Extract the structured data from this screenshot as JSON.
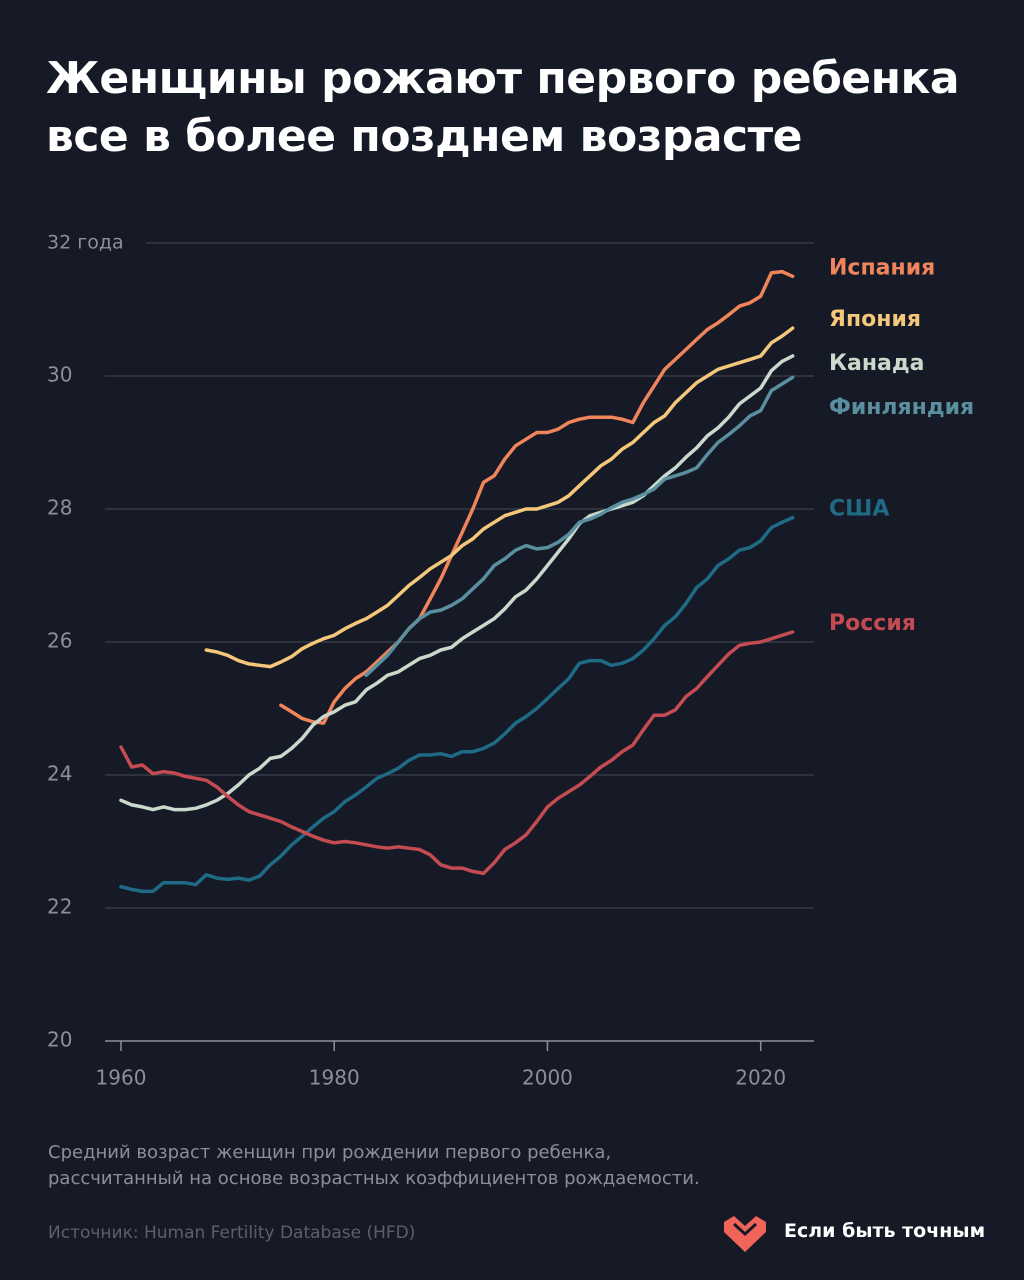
{
  "chart_data": {
    "type": "line",
    "title": "Женщины рожают первого ребенка все в более позднем возрасте",
    "note": "Средний возраст женщин при рождении первого ребенка, рассчитанный на основе возрастных коэффициентов рождаемости.",
    "source": "Источник: Human Fertility Database (HFD)",
    "brand": "Если быть точным",
    "xlim": [
      1958.5,
      2025
    ],
    "xticks": [
      1960,
      1980,
      2000,
      2020
    ],
    "ylim": [
      20,
      32
    ],
    "yticks": [
      20,
      22,
      24,
      26,
      28,
      30,
      {
        "value": 32,
        "label": "32 года"
      }
    ],
    "grid": true,
    "x": [
      1960,
      1961,
      1962,
      1963,
      1964,
      1965,
      1966,
      1967,
      1968,
      1969,
      1970,
      1971,
      1972,
      1973,
      1974,
      1975,
      1976,
      1977,
      1978,
      1979,
      1980,
      1981,
      1982,
      1983,
      1984,
      1985,
      1986,
      1987,
      1988,
      1989,
      1990,
      1991,
      1992,
      1993,
      1994,
      1995,
      1996,
      1997,
      1998,
      1999,
      2000,
      2001,
      2002,
      2003,
      2004,
      2005,
      2006,
      2007,
      2008,
      2009,
      2010,
      2011,
      2012,
      2013,
      2014,
      2015,
      2016,
      2017,
      2018,
      2019,
      2020,
      2021,
      2022,
      2023
    ],
    "series": [
      {
        "name": "Испания",
        "color": "#f0845a",
        "values": [
          null,
          null,
          null,
          null,
          null,
          null,
          null,
          null,
          null,
          null,
          null,
          null,
          null,
          null,
          null,
          25.05,
          24.95,
          24.85,
          24.8,
          24.78,
          25.1,
          25.3,
          25.45,
          25.55,
          25.7,
          25.85,
          26.0,
          26.2,
          26.35,
          26.65,
          26.95,
          27.3,
          27.65,
          28.0,
          28.4,
          28.5,
          28.75,
          28.95,
          29.05,
          29.15,
          29.15,
          29.2,
          29.3,
          29.35,
          29.38,
          29.38,
          29.38,
          29.35,
          29.3,
          29.6,
          29.85,
          30.1,
          30.25,
          30.4,
          30.55,
          30.7,
          30.8,
          30.92,
          31.05,
          31.1,
          31.2,
          31.55,
          31.57,
          31.5
        ]
      },
      {
        "name": "Япония",
        "color": "#f5c77a",
        "values": [
          null,
          null,
          null,
          null,
          null,
          null,
          null,
          null,
          25.88,
          25.85,
          25.8,
          25.72,
          25.67,
          25.65,
          25.63,
          25.7,
          25.78,
          25.9,
          25.98,
          26.05,
          26.1,
          26.2,
          26.28,
          26.35,
          26.45,
          26.55,
          26.7,
          26.85,
          26.97,
          27.1,
          27.2,
          27.3,
          27.45,
          27.55,
          27.7,
          27.8,
          27.9,
          27.95,
          28.0,
          28.0,
          28.05,
          28.1,
          28.2,
          28.35,
          28.5,
          28.65,
          28.75,
          28.9,
          29.0,
          29.15,
          29.3,
          29.4,
          29.6,
          29.75,
          29.9,
          30.0,
          30.1,
          30.15,
          30.2,
          30.25,
          30.3,
          30.5,
          30.6,
          30.72
        ]
      },
      {
        "name": "Канада",
        "color": "#c9d9cc",
        "values": [
          23.62,
          23.55,
          23.52,
          23.48,
          23.52,
          23.48,
          23.48,
          23.5,
          23.55,
          23.62,
          23.72,
          23.85,
          24.0,
          24.1,
          24.25,
          24.28,
          24.4,
          24.55,
          24.75,
          24.88,
          24.95,
          25.05,
          25.1,
          25.28,
          25.38,
          25.5,
          25.55,
          25.65,
          25.75,
          25.8,
          25.88,
          25.92,
          26.05,
          26.15,
          26.25,
          26.35,
          26.5,
          26.68,
          26.78,
          26.95,
          27.15,
          27.35,
          27.55,
          27.78,
          27.9,
          27.95,
          28.0,
          28.05,
          28.1,
          28.2,
          28.35,
          28.5,
          28.62,
          28.78,
          28.92,
          29.1,
          29.22,
          29.38,
          29.58,
          29.7,
          29.82,
          30.08,
          30.22,
          30.3
        ]
      },
      {
        "name": "Финляндия",
        "color": "#5a8fa0",
        "values": [
          null,
          null,
          null,
          null,
          null,
          null,
          null,
          null,
          null,
          null,
          null,
          null,
          null,
          null,
          null,
          null,
          null,
          null,
          null,
          null,
          null,
          null,
          null,
          25.5,
          25.65,
          25.8,
          26.0,
          26.2,
          26.35,
          26.45,
          26.48,
          26.55,
          26.65,
          26.8,
          26.95,
          27.15,
          27.25,
          27.38,
          27.45,
          27.4,
          27.42,
          27.5,
          27.62,
          27.8,
          27.85,
          27.92,
          28.02,
          28.1,
          28.15,
          28.22,
          28.3,
          28.45,
          28.5,
          28.55,
          28.62,
          28.82,
          29.0,
          29.12,
          29.25,
          29.4,
          29.48,
          29.78,
          29.88,
          29.98
        ]
      },
      {
        "name": "США",
        "color": "#1f6a85",
        "values": [
          22.32,
          22.28,
          22.25,
          22.25,
          22.38,
          22.38,
          22.38,
          22.35,
          22.5,
          22.45,
          22.43,
          22.45,
          22.42,
          22.48,
          22.65,
          22.78,
          22.95,
          23.08,
          23.22,
          23.35,
          23.45,
          23.6,
          23.7,
          23.82,
          23.95,
          24.02,
          24.1,
          24.22,
          24.3,
          24.3,
          24.32,
          24.28,
          24.35,
          24.35,
          24.4,
          24.48,
          24.62,
          24.78,
          24.88,
          25.0,
          25.15,
          25.3,
          25.45,
          25.68,
          25.72,
          25.72,
          25.65,
          25.68,
          25.75,
          25.88,
          26.05,
          26.25,
          26.38,
          26.58,
          26.82,
          26.95,
          27.15,
          27.25,
          27.38,
          27.42,
          27.52,
          27.72,
          27.8,
          27.87
        ]
      },
      {
        "name": "Россия",
        "color": "#c44b52",
        "values": [
          24.42,
          24.12,
          24.15,
          24.02,
          24.05,
          24.03,
          23.98,
          23.95,
          23.92,
          23.82,
          23.68,
          23.55,
          23.45,
          23.4,
          23.35,
          23.3,
          23.22,
          23.15,
          23.08,
          23.02,
          22.98,
          23.0,
          22.98,
          22.95,
          22.92,
          22.9,
          22.92,
          22.9,
          22.88,
          22.8,
          22.65,
          22.6,
          22.6,
          22.55,
          22.52,
          22.68,
          22.88,
          22.98,
          23.1,
          23.3,
          23.52,
          23.65,
          23.75,
          23.85,
          23.98,
          24.12,
          24.22,
          24.35,
          24.45,
          24.68,
          24.9,
          24.9,
          24.98,
          25.18,
          25.3,
          25.48,
          25.65,
          25.82,
          25.95,
          25.98,
          26.0,
          26.05,
          26.1,
          26.15
        ]
      }
    ]
  }
}
